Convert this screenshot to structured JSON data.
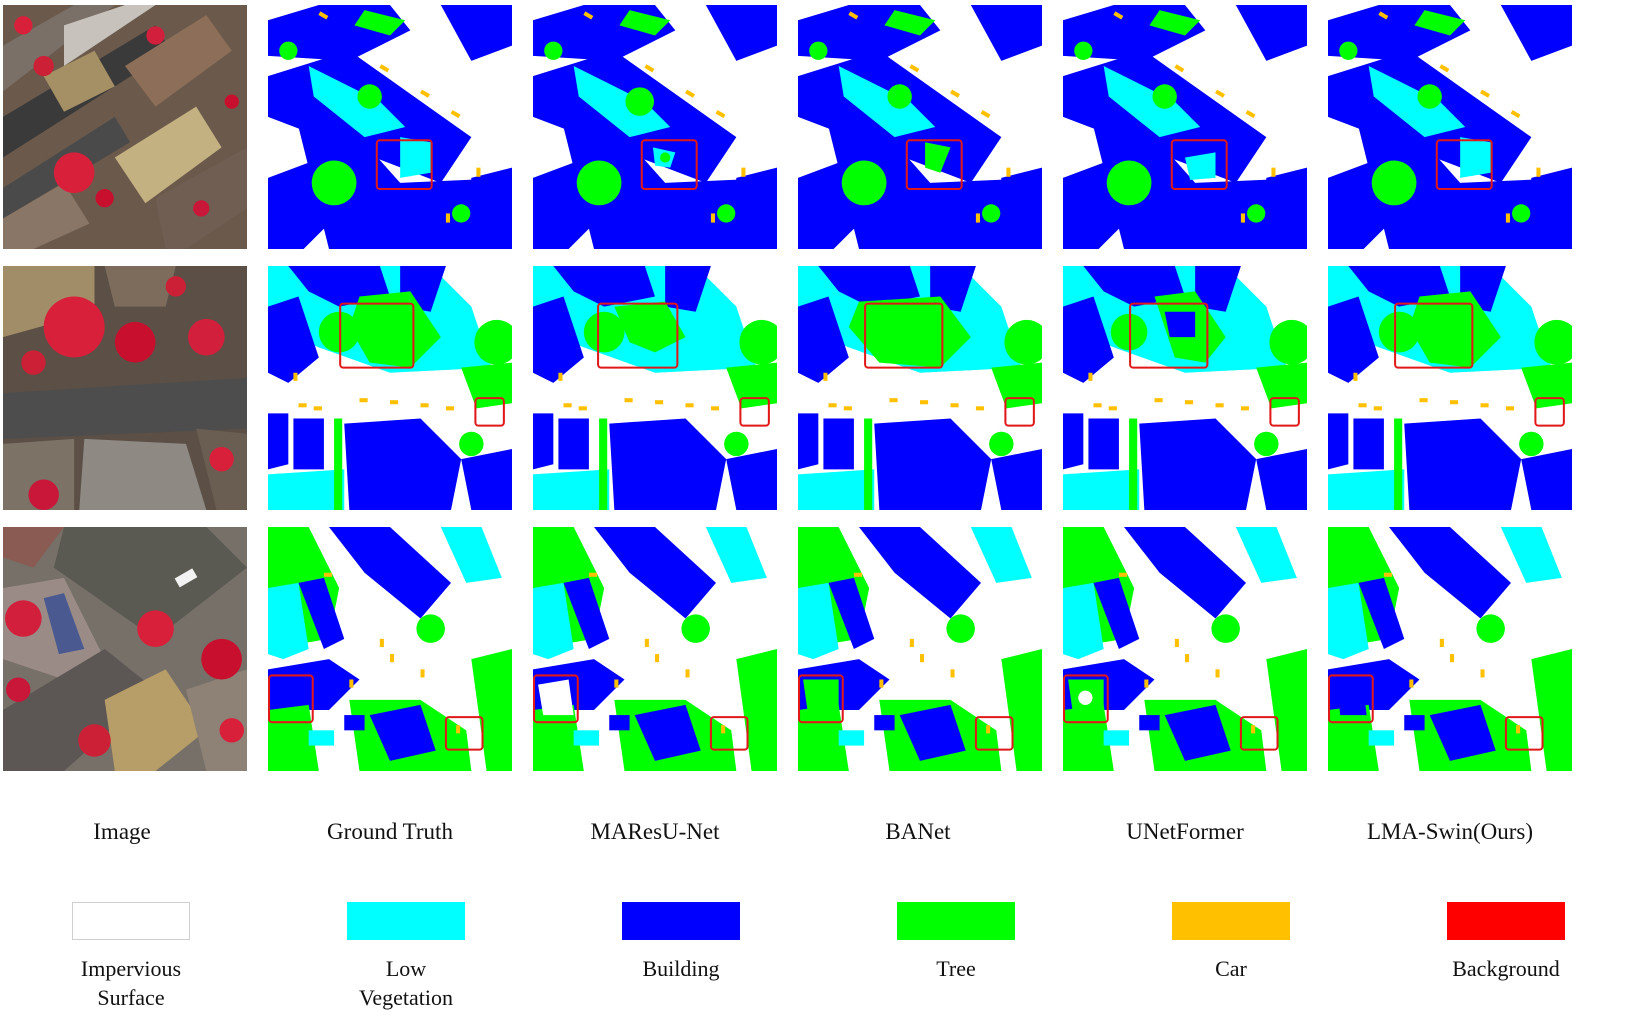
{
  "columns": [
    {
      "key": "image",
      "label": "Image"
    },
    {
      "key": "gt",
      "label": "Ground Truth"
    },
    {
      "key": "maresunet",
      "label": "MAResU-Net"
    },
    {
      "key": "banet",
      "label": "BANet"
    },
    {
      "key": "unetformer",
      "label": "UNetFormer"
    },
    {
      "key": "ours",
      "label": "LMA-Swin(Ours)"
    }
  ],
  "legend": [
    {
      "label": "Impervious Surface",
      "color": "#ffffff",
      "border": "#d0d0d0"
    },
    {
      "label": "Low Vegetation",
      "color": "#00ffff"
    },
    {
      "label": "Building",
      "color": "#0000ff"
    },
    {
      "label": "Tree",
      "color": "#00ff00"
    },
    {
      "label": "Car",
      "color": "#ffc000"
    },
    {
      "label": "Background",
      "color": "#ff0000"
    }
  ],
  "highlight_color": "#e01818"
}
